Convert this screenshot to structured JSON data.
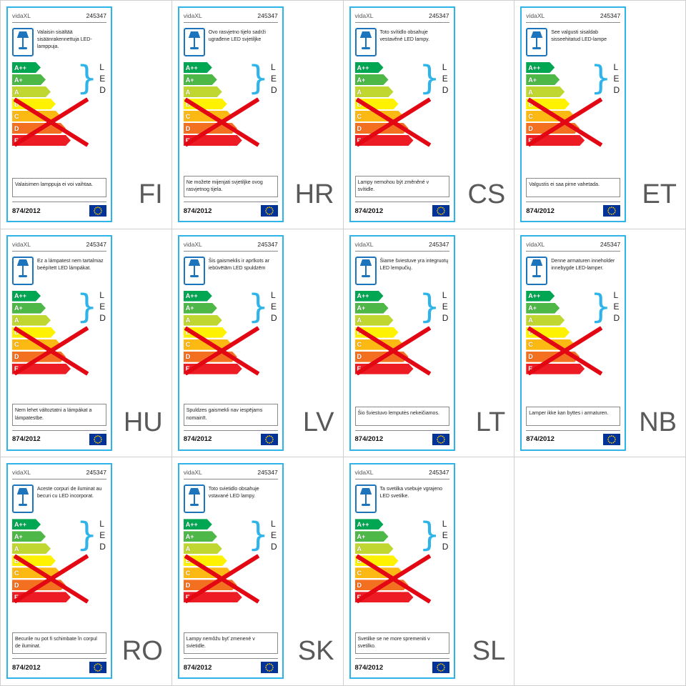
{
  "brand": "vidaXL",
  "model": "245347",
  "regulation": "874/2012",
  "led_letters": [
    "L",
    "E",
    "D"
  ],
  "colors": {
    "accent_border": "#2fb4e9",
    "x_mark": "#e30613",
    "lamp_icon": "#1c75bc",
    "eu_flag_blue": "#003399",
    "eu_flag_stars": "#ffcc00"
  },
  "energy_classes": [
    {
      "label": "A++",
      "color": "#00a651"
    },
    {
      "label": "A+",
      "color": "#4db848"
    },
    {
      "label": "A",
      "color": "#bfd730"
    },
    {
      "label": "B",
      "color": "#fff200"
    },
    {
      "label": "C",
      "color": "#fdb913"
    },
    {
      "label": "D",
      "color": "#f37021"
    },
    {
      "label": "E",
      "color": "#ed1c24"
    }
  ],
  "labels": [
    {
      "code": "FI",
      "top_text": "Valaisin sisältää sisäänrakennettuja LED-lamppuja.",
      "bottom_text": "Valaisimen lamppuja ei voi vaihtaa."
    },
    {
      "code": "HR",
      "top_text": "Ovo rasvjetno tijelo sadrži ugrađene LED svjetiljke",
      "bottom_text": "Ne možete mijenjati svjetiljke ovog rasvjetnog tijela."
    },
    {
      "code": "CS",
      "top_text": "Toto svítidlo obsahuje vestavěné LED lampy.",
      "bottom_text": "Lampy nemohou být změněné v svítidle."
    },
    {
      "code": "ET",
      "top_text": "See valgusti sisaldab sisseehitatud LED-lampe",
      "bottom_text": "Valgustis ei saa pirne vahetada."
    },
    {
      "code": "HU",
      "top_text": "Ez a lámpatest nem tartalmaz beépített LED lámpákat.",
      "bottom_text": "Nem lehet változtatni a lámpákat a lámpatestbe."
    },
    {
      "code": "LV",
      "top_text": "Šis gaismeklis ir aprīkots ar iebūvētām LED spuldzēm",
      "bottom_text": "Spuldzes gaismekli nav iespējams nomainīt."
    },
    {
      "code": "LT",
      "top_text": "Šiame šviestuve yra integruotų LED lempučių.",
      "bottom_text": "Šio šviestuvo lemputės nekeičiamos."
    },
    {
      "code": "NB",
      "top_text": "Denne armaturen inneholder innebygde LED-lamper.",
      "bottom_text": "Lamper ikke kan byttes i armaturen."
    },
    {
      "code": "RO",
      "top_text": "Aceste corpuri de iluminat au becuri cu LED incorporat.",
      "bottom_text": "Becurile nu pot fi schimbate în corpul de iluminat."
    },
    {
      "code": "SK",
      "top_text": "Toto svietidlo obsahuje vstavané LED lampy.",
      "bottom_text": "Lampy nemôžu byť zmenené v svietidle."
    },
    {
      "code": "SL",
      "top_text": "Ta svetilka vsebuje vgrajeno LED svetilke.",
      "bottom_text": "Svetilke se ne more spremeniti v svetilko."
    }
  ]
}
